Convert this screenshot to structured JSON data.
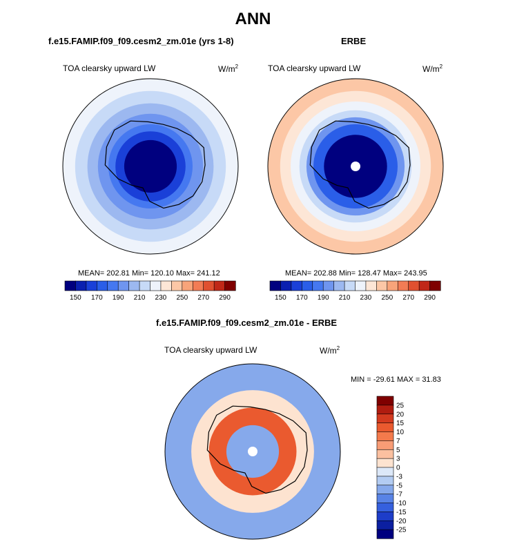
{
  "title": "ANN",
  "panels": {
    "left": {
      "header": "f.e15.FAMIP.f09_f09.cesm2_zm.01e (yrs 1-8)",
      "variable": "TOA clearsky upward LW",
      "units": "W/m",
      "units_sup": "2",
      "stats": "MEAN= 202.81  Min= 120.10  Max= 241.12"
    },
    "right": {
      "header": "ERBE",
      "variable": "TOA clearsky upward LW",
      "units": "W/m",
      "units_sup": "2",
      "stats": "MEAN= 202.88  Min= 128.47  Max= 243.95"
    },
    "diff": {
      "header": "f.e15.FAMIP.f09_f09.cesm2_zm.01e - ERBE",
      "variable": "TOA clearsky upward LW",
      "units": "W/m",
      "units_sup": "2",
      "stats": "MIN = -29.61 MAX =  31.83"
    }
  },
  "chart_data": [
    {
      "type": "heatmap",
      "projection": "polar stereographic (south pole)",
      "title": "f.e15.FAMIP.f09_f09.cesm2_zm.01e (yrs 1-8)",
      "variable": "TOA clearsky upward LW",
      "units": "W/m2",
      "mean": 202.81,
      "min": 120.1,
      "max": 241.12,
      "colorbar_levels": [
        150,
        160,
        170,
        180,
        190,
        200,
        210,
        220,
        230,
        240,
        250,
        260,
        270,
        280,
        290
      ],
      "colorbar_tick_labels": [
        "150",
        "170",
        "190",
        "210",
        "230",
        "250",
        "270",
        "290"
      ],
      "colorbar_colors": [
        "#00007f",
        "#0a20b0",
        "#1a40d8",
        "#2a5ee8",
        "#4578f0",
        "#6f95ef",
        "#9cb8f0",
        "#c7daf7",
        "#eef3fb",
        "#fde6d6",
        "#fcc7a6",
        "#f8a47a",
        "#f27c55",
        "#e05030",
        "#c02818",
        "#7f0000"
      ],
      "rings": [
        {
          "value": 225,
          "radius_frac": 1.0
        },
        {
          "value": 215,
          "radius_frac": 0.86
        },
        {
          "value": 205,
          "radius_frac": 0.72
        },
        {
          "value": 195,
          "radius_frac": 0.6
        },
        {
          "value": 180,
          "radius_frac": 0.48
        },
        {
          "value": 165,
          "radius_frac": 0.4
        },
        {
          "value": 140,
          "radius_frac": 0.3
        }
      ]
    },
    {
      "type": "heatmap",
      "projection": "polar stereographic (south pole)",
      "title": "ERBE",
      "variable": "TOA clearsky upward LW",
      "units": "W/m2",
      "mean": 202.88,
      "min": 128.47,
      "max": 243.95,
      "colorbar_levels": [
        150,
        160,
        170,
        180,
        190,
        200,
        210,
        220,
        230,
        240,
        250,
        260,
        270,
        280,
        290
      ],
      "colorbar_tick_labels": [
        "150",
        "170",
        "190",
        "210",
        "230",
        "250",
        "270",
        "290"
      ],
      "colorbar_colors": [
        "#00007f",
        "#0a20b0",
        "#1a40d8",
        "#2a5ee8",
        "#4578f0",
        "#6f95ef",
        "#9cb8f0",
        "#c7daf7",
        "#eef3fb",
        "#fde6d6",
        "#fcc7a6",
        "#f8a47a",
        "#f27c55",
        "#e05030",
        "#c02818",
        "#7f0000"
      ],
      "rings": [
        {
          "value": 245,
          "radius_frac": 1.0
        },
        {
          "value": 235,
          "radius_frac": 0.86
        },
        {
          "value": 225,
          "radius_frac": 0.74
        },
        {
          "value": 215,
          "radius_frac": 0.64
        },
        {
          "value": 195,
          "radius_frac": 0.56
        },
        {
          "value": 175,
          "radius_frac": 0.48
        },
        {
          "value": 145,
          "radius_frac": 0.36
        }
      ]
    },
    {
      "type": "heatmap",
      "projection": "polar stereographic (south pole)",
      "title": "f.e15.FAMIP.f09_f09.cesm2_zm.01e - ERBE",
      "variable": "TOA clearsky upward LW",
      "units": "W/m2",
      "min": -29.61,
      "max": 31.83,
      "colorbar_levels": [
        25,
        20,
        15,
        10,
        7,
        5,
        3,
        0,
        -3,
        -5,
        -7,
        -10,
        -15,
        -20,
        -25
      ],
      "colorbar_tick_labels": [
        "25",
        "20",
        "15",
        "10",
        "7",
        "5",
        "3",
        "0",
        "-3",
        "-5",
        "-7",
        "-10",
        "-15",
        "-20",
        "-25"
      ],
      "colorbar_colors": [
        "#7f0000",
        "#b01c10",
        "#d33a1f",
        "#ea5a2f",
        "#f47a4c",
        "#f89c75",
        "#fbc0a0",
        "#fde3d0",
        "#dce8f8",
        "#b3ccf2",
        "#86a9eb",
        "#5883e6",
        "#3560de",
        "#1d3dc9",
        "#0b1fa0",
        "#00007f"
      ],
      "rings": [
        {
          "value": -7,
          "radius_frac": 1.0
        },
        {
          "value": 0,
          "radius_frac": 0.7
        },
        {
          "value": 10,
          "radius_frac": 0.5
        },
        {
          "value": -7,
          "radius_frac": 0.3
        }
      ]
    }
  ]
}
